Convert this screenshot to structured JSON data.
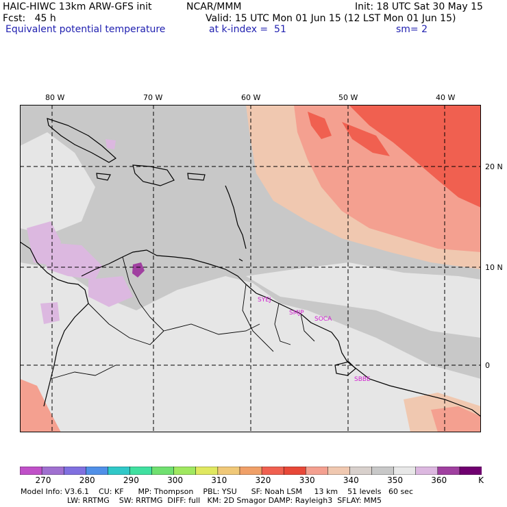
{
  "header": {
    "model": "HAIC-HIWC 13km ARW-GFS init",
    "center": "NCAR/MMM",
    "fcst": "Fcst:   45 h",
    "init": "Init: 18 UTC Sat 30 May 15",
    "valid": "Valid: 15 UTC Mon 01 Jun 15 (12 LST Mon 01 Jun 15)",
    "field": "Equivalent potential temperature",
    "level": "at k-index =  51",
    "smooth": "sm= 2"
  },
  "axes": {
    "lon_labels": [
      "80 W",
      "70 W",
      "60 W",
      "50 W",
      "40 W"
    ],
    "lat_labels": [
      "20 N",
      "10 N",
      "0"
    ]
  },
  "stations": [
    "SYEJ",
    "SMJP",
    "SOCA",
    "SBBE"
  ],
  "colorbar": {
    "labels": [
      "270",
      "280",
      "290",
      "300",
      "310",
      "320",
      "330",
      "340",
      "350",
      "360"
    ],
    "unit": "K",
    "colors": [
      "#c050c8",
      "#a070d0",
      "#8070e0",
      "#5090e8",
      "#30c8c8",
      "#40e0a0",
      "#70e070",
      "#a0e860",
      "#e0e860",
      "#f0c878",
      "#f0a068",
      "#f06050",
      "#e84838",
      "#f4a090",
      "#f0c8b0",
      "#d8d0cc",
      "#c8c8c8",
      "#e8e8e8",
      "#dcb8e0",
      "#a040a0",
      "#700070"
    ]
  },
  "model_info": {
    "line1": "Model Info: V3.6.1    CU: KF      MP: Thompson    PBL: YSU      SF: Noah LSM     13 km    51 levels   60 sec",
    "line2": "LW: RRTMG    SW: RRTMG  DIFF: full   KM: 2D Smagor DAMP: Rayleigh3  SFLAY: MM5"
  }
}
